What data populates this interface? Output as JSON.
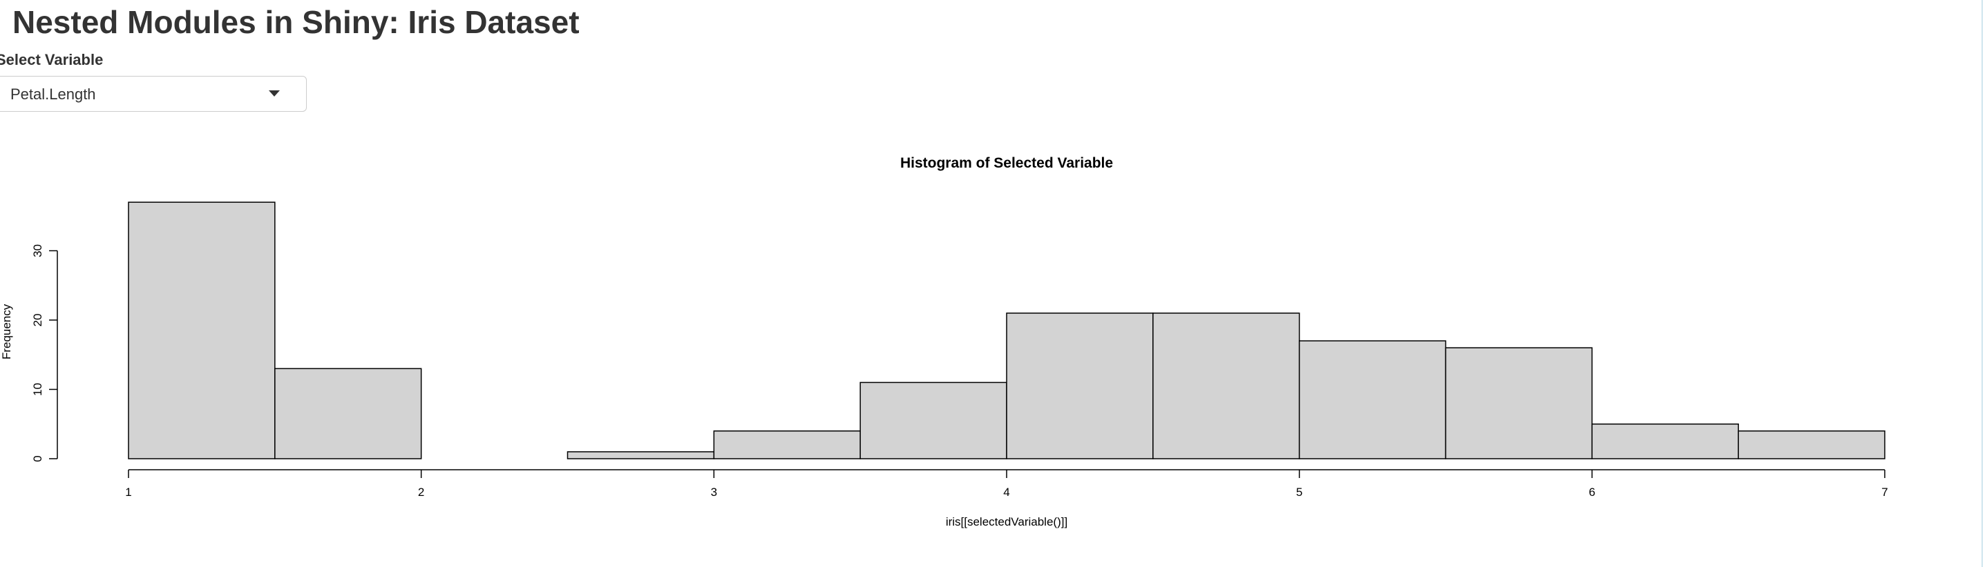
{
  "app": {
    "title": "Nested Modules in Shiny: Iris Dataset"
  },
  "control": {
    "label": "Select Variable",
    "selected": "Petal.Length",
    "dropdown_icon": "chevron-down-icon"
  },
  "colors": {
    "bar_fill": "#d3d3d3",
    "bar_stroke": "#000000",
    "text": "#333333"
  },
  "chart_data": {
    "type": "bar",
    "title": "Histogram of Selected Variable",
    "xlabel": "iris[[selectedVariable()]]",
    "ylabel": "Frequency",
    "bin_edges": [
      1,
      1.5,
      2,
      2.5,
      3,
      3.5,
      4,
      4.5,
      5,
      5.5,
      6,
      6.5,
      7
    ],
    "values": [
      37,
      13,
      0,
      1,
      4,
      11,
      21,
      21,
      17,
      16,
      5,
      4
    ],
    "xlim": [
      1,
      7
    ],
    "ylim": [
      0,
      37
    ],
    "x_ticks": [
      "1",
      "2",
      "3",
      "4",
      "5",
      "6",
      "7"
    ],
    "y_ticks": [
      "0",
      "10",
      "20",
      "30"
    ],
    "grid": false,
    "legend": "none"
  }
}
